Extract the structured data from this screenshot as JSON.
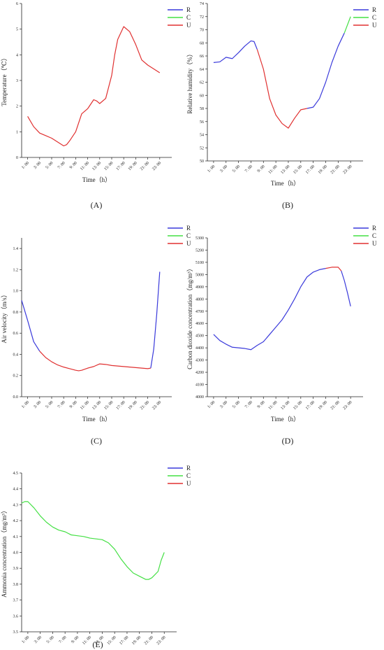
{
  "legend": [
    {
      "name": "R",
      "color": "#3a3adb"
    },
    {
      "name": "C",
      "color": "#44e044"
    },
    {
      "name": "U",
      "color": "#e03030"
    }
  ],
  "time_ticks": [
    "1: 00",
    "3: 00",
    "5: 00",
    "7: 00",
    "9: 00",
    "11: 00",
    "13: 00",
    "15: 00",
    "17: 00",
    "19: 00",
    "21: 00",
    "23: 00"
  ],
  "chart_data": [
    {
      "id": "A",
      "type": "line",
      "panel_label": "(A)",
      "xlabel": "Time（h）",
      "ylabel": "Temperature（℃）",
      "ylim": [
        0,
        6
      ],
      "yticks": [
        0,
        1,
        2,
        3,
        4,
        5,
        6
      ],
      "xlim": [
        0,
        25
      ],
      "series": [
        {
          "name": "U",
          "color": "#e03030",
          "x": [
            1,
            1.5,
            2,
            3,
            4,
            5,
            6,
            7,
            7.5,
            8,
            9,
            10,
            11,
            12,
            12.5,
            13,
            14,
            15,
            15.5,
            16,
            17,
            18,
            19,
            20,
            21,
            22,
            23
          ],
          "y": [
            1.6,
            1.4,
            1.2,
            0.95,
            0.85,
            0.75,
            0.6,
            0.45,
            0.5,
            0.65,
            1.0,
            1.7,
            1.9,
            2.25,
            2.2,
            2.1,
            2.3,
            3.2,
            4.0,
            4.6,
            5.1,
            4.9,
            4.4,
            3.8,
            3.6,
            3.45,
            3.3
          ]
        }
      ]
    },
    {
      "id": "B",
      "type": "line",
      "panel_label": "(B)",
      "xlabel": "Time（h）",
      "ylabel": "Relative humidity（%）",
      "ylim": [
        50,
        74
      ],
      "yticks": [
        50,
        52,
        54,
        56,
        58,
        60,
        62,
        64,
        66,
        68,
        70,
        72,
        74
      ],
      "xlim": [
        0,
        25
      ],
      "series": [
        {
          "name": "R",
          "color": "#3a3adb",
          "x": [
            1,
            2,
            3,
            4,
            5,
            6,
            7,
            7.5,
            8
          ],
          "y": [
            65.0,
            65.1,
            65.8,
            65.6,
            66.5,
            67.5,
            68.3,
            68.2,
            67.0
          ]
        },
        {
          "name": "U",
          "color": "#e03030",
          "x": [
            8,
            9,
            10,
            11,
            12,
            13,
            14,
            15,
            16
          ],
          "y": [
            67.0,
            64.0,
            59.5,
            57.0,
            55.7,
            55.0,
            56.5,
            57.8,
            58.0
          ]
        },
        {
          "name": "R",
          "color": "#3a3adb",
          "x": [
            16,
            17,
            18,
            19,
            20,
            21,
            22
          ],
          "y": [
            58.0,
            58.2,
            59.5,
            62.0,
            65.0,
            67.5,
            69.5
          ]
        },
        {
          "name": "C",
          "color": "#44e044",
          "x": [
            22,
            23
          ],
          "y": [
            69.5,
            72.0
          ]
        }
      ]
    },
    {
      "id": "C",
      "type": "line",
      "panel_label": "(C)",
      "xlabel": "Time（h）",
      "ylabel": "Air velocity（m/s）",
      "ylim": [
        0,
        1.5
      ],
      "yticks": [
        0.0,
        0.2,
        0.4,
        0.6,
        0.8,
        1.0,
        1.2,
        1.4
      ],
      "ytick_labels": [
        "0.0",
        "0.2",
        "0.4",
        "0.6",
        "0.8",
        "1.0",
        "1.2",
        "1.4"
      ],
      "xlim": [
        0,
        25
      ],
      "series": [
        {
          "name": "R",
          "color": "#3a3adb",
          "x": [
            0,
            1,
            2,
            3
          ],
          "y": [
            0.91,
            0.72,
            0.52,
            0.43
          ]
        },
        {
          "name": "U",
          "color": "#e03030",
          "x": [
            3,
            4,
            5,
            6,
            7,
            8,
            9,
            9.5,
            10,
            11,
            12,
            13,
            14,
            15,
            16,
            17,
            18,
            19,
            20,
            21,
            21.5
          ],
          "y": [
            0.43,
            0.37,
            0.33,
            0.3,
            0.28,
            0.265,
            0.25,
            0.245,
            0.25,
            0.27,
            0.285,
            0.31,
            0.305,
            0.295,
            0.29,
            0.285,
            0.28,
            0.275,
            0.27,
            0.265,
            0.27
          ]
        },
        {
          "name": "R",
          "color": "#3a3adb",
          "x": [
            21.5,
            22,
            22.5,
            23
          ],
          "y": [
            0.27,
            0.45,
            0.78,
            1.18
          ]
        }
      ]
    },
    {
      "id": "D",
      "type": "line",
      "panel_label": "(D)",
      "xlabel": "Time（h）",
      "ylabel": "Carbon dioxide concentration（mg/m³）",
      "ylim": [
        4000,
        5300
      ],
      "yticks": [
        4000,
        4100,
        4200,
        4300,
        4400,
        4500,
        4600,
        4700,
        4800,
        4900,
        5000,
        5100,
        5200,
        5300
      ],
      "xlim": [
        0,
        25
      ],
      "series": [
        {
          "name": "R",
          "color": "#3a3adb",
          "x": [
            1,
            2,
            3,
            4,
            5,
            6,
            7,
            8,
            9,
            10,
            11,
            12,
            13,
            14,
            15,
            16,
            17,
            18,
            19
          ],
          "y": [
            4510,
            4460,
            4430,
            4405,
            4400,
            4395,
            4385,
            4420,
            4450,
            4510,
            4570,
            4630,
            4710,
            4800,
            4900,
            4980,
            5020,
            5040,
            5050
          ]
        },
        {
          "name": "U",
          "color": "#e03030",
          "x": [
            19,
            20,
            21,
            21.5
          ],
          "y": [
            5050,
            5060,
            5060,
            5030
          ]
        },
        {
          "name": "R",
          "color": "#3a3adb",
          "x": [
            21.5,
            22,
            22.5,
            23
          ],
          "y": [
            5030,
            4950,
            4850,
            4740
          ]
        }
      ]
    },
    {
      "id": "E",
      "type": "line",
      "panel_label": "(E)",
      "xlabel": "Time（h）",
      "ylabel": "Ammonia concentration（mg/m³）",
      "ylim": [
        3.5,
        4.5
      ],
      "yticks": [
        3.5,
        3.6,
        3.7,
        3.8,
        3.9,
        4.0,
        4.1,
        4.2,
        4.3,
        4.4,
        4.5
      ],
      "ytick_labels": [
        "3.5",
        "3.6",
        "3.7",
        "3.8",
        "3.9",
        "4.0",
        "4.1",
        "4.2",
        "4.3",
        "4.4",
        "4.5"
      ],
      "xlim": [
        0,
        25
      ],
      "series": [
        {
          "name": "C",
          "color": "#44e044",
          "x": [
            0,
            0.5,
            1,
            2,
            3,
            4,
            5,
            6,
            7,
            8,
            9,
            10,
            11,
            12,
            13,
            14,
            15,
            16,
            17,
            18,
            19,
            20,
            20.5,
            21,
            22,
            22.5,
            23
          ],
          "y": [
            4.31,
            4.32,
            4.32,
            4.28,
            4.23,
            4.19,
            4.16,
            4.14,
            4.13,
            4.11,
            4.105,
            4.1,
            4.09,
            4.085,
            4.08,
            4.06,
            4.02,
            3.96,
            3.91,
            3.87,
            3.85,
            3.83,
            3.83,
            3.84,
            3.88,
            3.95,
            4.0
          ]
        }
      ]
    }
  ]
}
